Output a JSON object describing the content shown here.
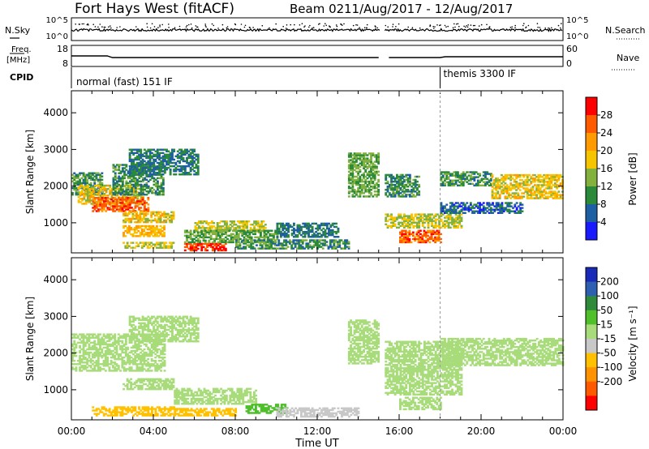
{
  "header": {
    "title": "Fort Hays West (fitACF)",
    "beam": "Beam 02",
    "dates": "11/Aug/2017 - 12/Aug/2017"
  },
  "summary": {
    "nsky_label": "N.Sky",
    "nsky_ticks": [
      "10^5",
      "10^0"
    ],
    "nsearch_label": "N.Search",
    "nsearch_ticks": [
      "10^5",
      "10^0"
    ],
    "freq_label_1": "Freq.",
    "freq_label_2": "[MHz]",
    "freq_ticks": [
      "18",
      "8"
    ],
    "nave_label": "Nave",
    "nave_ticks": [
      "60",
      "0"
    ],
    "cpid_label": "CPID",
    "cpid_segments": [
      {
        "label": "normal (fast) 151 IF",
        "start_h": 0.0,
        "end_h": 18.0
      },
      {
        "label": "themis 3300 IF",
        "start_h": 18.0,
        "end_h": 24.0
      }
    ]
  },
  "power_colorbar": {
    "label": "Power [dB]",
    "ticks": [
      "28",
      "24",
      "20",
      "16",
      "12",
      "8",
      "4"
    ],
    "colors": [
      "#ff0000",
      "#ff5a00",
      "#ff9b00",
      "#f7c400",
      "#82b13e",
      "#2a8a3a",
      "#1e5fa3",
      "#1a1aff"
    ]
  },
  "velocity_colorbar": {
    "label": "Velocity [m s⁻¹]",
    "ticks": [
      "200",
      "100",
      "50",
      "15",
      "-15",
      "-50",
      "-100",
      "-200"
    ],
    "colors": [
      "#1a2ab8",
      "#2e5fb0",
      "#2f8a3a",
      "#4fbf2a",
      "#a8dc7a",
      "#c8c8c8",
      "#ffc000",
      "#ff9200",
      "#ff5a00",
      "#ff0000"
    ]
  },
  "chart_data": [
    {
      "type": "heatmap",
      "title": "Power",
      "xlabel": "",
      "ylabel": "Slant Range [km]",
      "x_range_hours": [
        0,
        24
      ],
      "ylim": [
        180,
        4600
      ],
      "yticks": [
        1000,
        2000,
        3000,
        4000
      ],
      "xtick_labels": [
        "00:00",
        "04:00",
        "08:00",
        "12:00",
        "16:00",
        "20:00",
        "00:00"
      ],
      "colorbar_range_dB": [
        0,
        32
      ],
      "data_gaps_hours": [
        [
          15.1,
          15.3
        ]
      ],
      "regions": [
        {
          "t0": 0.0,
          "t1": 1.5,
          "r0": 1750,
          "r1": 2350,
          "value": 10
        },
        {
          "t0": 0.3,
          "t1": 3.5,
          "r0": 1500,
          "r1": 2000,
          "value": 18
        },
        {
          "t0": 1.0,
          "t1": 3.7,
          "r0": 1300,
          "r1": 1700,
          "value": 26
        },
        {
          "t0": 2.0,
          "t1": 4.5,
          "r0": 1750,
          "r1": 2600,
          "value": 10
        },
        {
          "t0": 2.8,
          "t1": 6.2,
          "r0": 2300,
          "r1": 3000,
          "value": 8
        },
        {
          "t0": 2.5,
          "t1": 5.0,
          "r0": 1000,
          "r1": 1300,
          "value": 18
        },
        {
          "t0": 2.5,
          "t1": 4.5,
          "r0": 620,
          "r1": 900,
          "value": 20
        },
        {
          "t0": 2.5,
          "t1": 5.0,
          "r0": 300,
          "r1": 480,
          "value": 16
        },
        {
          "t0": 5.5,
          "t1": 7.5,
          "r0": 230,
          "r1": 450,
          "value": 28
        },
        {
          "t0": 6.0,
          "t1": 9.5,
          "r0": 750,
          "r1": 1050,
          "value": 16
        },
        {
          "t0": 5.5,
          "t1": 10.0,
          "r0": 450,
          "r1": 780,
          "value": 12
        },
        {
          "t0": 8.0,
          "t1": 13.5,
          "r0": 280,
          "r1": 520,
          "value": 10
        },
        {
          "t0": 10.0,
          "t1": 13.0,
          "r0": 600,
          "r1": 1000,
          "value": 8
        },
        {
          "t0": 13.5,
          "t1": 15.0,
          "r0": 1700,
          "r1": 2900,
          "value": 12
        },
        {
          "t0": 15.3,
          "t1": 17.0,
          "r0": 1700,
          "r1": 2300,
          "value": 10
        },
        {
          "t0": 15.3,
          "t1": 19.0,
          "r0": 850,
          "r1": 1250,
          "value": 16
        },
        {
          "t0": 16.0,
          "t1": 18.0,
          "r0": 450,
          "r1": 800,
          "value": 26
        },
        {
          "t0": 18.0,
          "t1": 22.0,
          "r0": 1250,
          "r1": 1550,
          "value": 6
        },
        {
          "t0": 18.0,
          "t1": 20.5,
          "r0": 2000,
          "r1": 2400,
          "value": 10
        },
        {
          "t0": 20.5,
          "t1": 24.0,
          "r0": 1650,
          "r1": 2300,
          "value": 18
        }
      ]
    },
    {
      "type": "heatmap",
      "title": "Velocity",
      "xlabel": "Time UT",
      "ylabel": "Slant Range [km]",
      "x_range_hours": [
        0,
        24
      ],
      "ylim": [
        180,
        4600
      ],
      "yticks": [
        1000,
        2000,
        3000,
        4000
      ],
      "xtick_labels": [
        "00:00",
        "04:00",
        "08:00",
        "12:00",
        "16:00",
        "20:00",
        "00:00"
      ],
      "colorbar_range_ms": [
        -250,
        250
      ],
      "data_gaps_hours": [
        [
          15.1,
          15.3
        ]
      ],
      "regions": [
        {
          "t0": 0.0,
          "t1": 4.5,
          "r0": 1500,
          "r1": 2500,
          "value": 0
        },
        {
          "t0": 2.8,
          "t1": 6.2,
          "r0": 2300,
          "r1": 3000,
          "value": 0
        },
        {
          "t0": 2.5,
          "t1": 5.0,
          "r0": 1000,
          "r1": 1300,
          "value": 0
        },
        {
          "t0": 1.0,
          "t1": 5.0,
          "r0": 280,
          "r1": 520,
          "value": -80
        },
        {
          "t0": 5.0,
          "t1": 9.0,
          "r0": 600,
          "r1": 1050,
          "value": 0
        },
        {
          "t0": 5.0,
          "t1": 8.0,
          "r0": 280,
          "r1": 480,
          "value": -60
        },
        {
          "t0": 8.5,
          "t1": 10.5,
          "r0": 350,
          "r1": 600,
          "value": 40
        },
        {
          "t0": 10.0,
          "t1": 14.0,
          "r0": 250,
          "r1": 500,
          "value": -30
        },
        {
          "t0": 13.5,
          "t1": 15.0,
          "r0": 1700,
          "r1": 2900,
          "value": 0
        },
        {
          "t0": 15.3,
          "t1": 19.0,
          "r0": 850,
          "r1": 2300,
          "value": 0
        },
        {
          "t0": 16.0,
          "t1": 18.0,
          "r0": 450,
          "r1": 800,
          "value": 0
        },
        {
          "t0": 18.0,
          "t1": 24.0,
          "r0": 1650,
          "r1": 2400,
          "value": 0
        }
      ]
    }
  ]
}
